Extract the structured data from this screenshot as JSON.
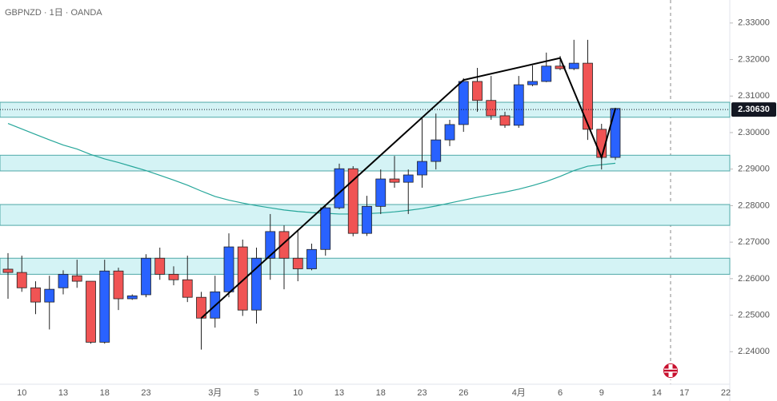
{
  "chart_data": {
    "type": "candlestick",
    "title": "GBPNZD · 1日 · OANDA",
    "categories": [
      null,
      "10",
      null,
      null,
      "13",
      null,
      null,
      "18",
      null,
      null,
      "23",
      null,
      null,
      null,
      null,
      "3月",
      null,
      null,
      "5",
      null,
      null,
      "10",
      null,
      null,
      "13",
      null,
      null,
      "18",
      null,
      null,
      "23",
      null,
      null,
      "26",
      null,
      null,
      null,
      "4月",
      null,
      null,
      "6",
      null,
      null,
      "9",
      null,
      null,
      null,
      "14",
      null,
      "17",
      null,
      null,
      "22"
    ],
    "open": [
      2.2626,
      2.2617,
      2.2575,
      2.2536,
      2.2575,
      2.2608,
      2.2593,
      2.2426,
      2.2621,
      2.2545,
      2.2556,
      2.2656,
      2.2612,
      2.2597,
      2.2549,
      2.2492,
      2.2564,
      2.2687,
      2.2514,
      2.2656,
      2.2729,
      2.2656,
      2.2627,
      2.268,
      2.2794,
      2.2901,
      2.2724,
      2.2798,
      2.2873,
      2.2864,
      2.2884,
      2.2921,
      2.298,
      2.3022,
      2.314,
      2.3088,
      2.3046,
      2.302,
      2.3131,
      2.314,
      2.3182,
      2.3175,
      2.319,
      2.3009,
      2.2932,
      null,
      null,
      null,
      null,
      null,
      null,
      null,
      null
    ],
    "high": [
      2.267,
      2.2663,
      2.2593,
      2.2608,
      2.2623,
      2.2652,
      2.2593,
      2.2652,
      2.263,
      2.2557,
      2.2667,
      2.2685,
      2.2634,
      2.2663,
      2.2564,
      2.2608,
      2.2724,
      2.2707,
      2.2685,
      2.2777,
      2.2746,
      2.2733,
      2.2696,
      2.2798,
      2.2915,
      2.2908,
      2.2827,
      2.2899,
      2.2936,
      2.2899,
      2.3039,
      2.3052,
      2.3035,
      2.3149,
      2.3177,
      2.3155,
      2.3057,
      2.3155,
      2.3184,
      2.3219,
      2.321,
      2.3254,
      2.3254,
      2.3024,
      2.3068,
      null,
      null,
      null,
      null,
      null,
      null,
      null,
      null
    ],
    "low": [
      2.2545,
      2.2564,
      2.2503,
      2.2461,
      2.2557,
      2.2575,
      2.2422,
      2.2422,
      2.2514,
      2.2542,
      2.2549,
      2.2597,
      2.2582,
      2.2536,
      2.2406,
      2.2466,
      2.2549,
      2.2498,
      2.2477,
      2.2597,
      2.2571,
      2.2593,
      2.2623,
      2.2663,
      2.279,
      2.2716,
      2.2717,
      2.2777,
      2.2849,
      2.2777,
      2.2849,
      2.2899,
      2.2963,
      2.3002,
      2.3057,
      2.3035,
      2.3013,
      2.3013,
      2.3127,
      2.3138,
      2.3171,
      2.3171,
      2.298,
      2.2899,
      2.2925,
      null,
      null,
      null,
      null,
      null,
      null,
      null,
      null
    ],
    "close": [
      2.2617,
      2.2575,
      2.2536,
      2.2571,
      2.2612,
      2.2593,
      2.2426,
      2.2621,
      2.2545,
      2.2553,
      2.2656,
      2.2612,
      2.2597,
      2.2549,
      2.2492,
      2.2564,
      2.2687,
      2.2514,
      2.2656,
      2.2729,
      2.2656,
      2.2627,
      2.268,
      2.2794,
      2.2901,
      2.2724,
      2.2798,
      2.2873,
      2.2864,
      2.2884,
      2.2921,
      2.298,
      2.3022,
      2.314,
      2.3088,
      2.3046,
      2.302,
      2.3131,
      2.314,
      2.3182,
      2.3175,
      2.319,
      2.3009,
      2.2932,
      2.3066,
      null,
      null,
      null,
      null,
      null,
      null,
      null,
      null
    ],
    "up_color": "#2962ff",
    "down_color": "#f05454",
    "moving_average": {
      "color": "#26a69a",
      "values": [
        2.3025,
        2.301,
        2.2995,
        2.298,
        2.2966,
        2.2955,
        2.294,
        2.2928,
        2.2918,
        2.2907,
        2.2896,
        2.2883,
        2.287,
        2.2856,
        2.284,
        2.2825,
        2.2815,
        2.2807,
        2.28,
        2.2794,
        2.2788,
        2.2784,
        2.2781,
        2.2779,
        2.2777,
        2.2777,
        2.2778,
        2.278,
        2.2783,
        2.2787,
        2.2792,
        2.2799,
        2.2807,
        2.2815,
        2.2823,
        2.283,
        2.2837,
        2.2845,
        2.2855,
        2.2866,
        2.288,
        2.2896,
        2.2908,
        2.2912,
        2.2916,
        null,
        null,
        null,
        null,
        null,
        null,
        null,
        null
      ]
    },
    "zigzag": {
      "color": "#000000",
      "x": [
        14,
        33,
        40,
        43,
        44
      ],
      "values": [
        2.2492,
        2.3144,
        2.3204,
        2.2932,
        2.3066
      ]
    },
    "zones": [
      [
        2.3042,
        2.3083
      ],
      [
        2.2895,
        2.2938
      ],
      [
        2.2746,
        2.2803
      ],
      [
        2.2612,
        2.2656
      ]
    ],
    "zone_color": "#d4f3f5",
    "last_price": {
      "value": 2.3063,
      "label": "2.30630"
    },
    "ylim": [
      2.2311,
      2.3363
    ],
    "yticks": [
      {
        "value": 2.33,
        "label": "2.33000"
      },
      {
        "value": 2.32,
        "label": "2.32000"
      },
      {
        "value": 2.31,
        "label": "2.31000"
      },
      {
        "value": 2.3,
        "label": "2.30000"
      },
      {
        "value": 2.29,
        "label": "2.29000"
      },
      {
        "value": 2.28,
        "label": "2.28000"
      },
      {
        "value": 2.27,
        "label": "2.27000"
      },
      {
        "value": 2.26,
        "label": "2.26000"
      },
      {
        "value": 2.25,
        "label": "2.25000"
      },
      {
        "value": 2.24,
        "label": "2.24000"
      }
    ]
  }
}
